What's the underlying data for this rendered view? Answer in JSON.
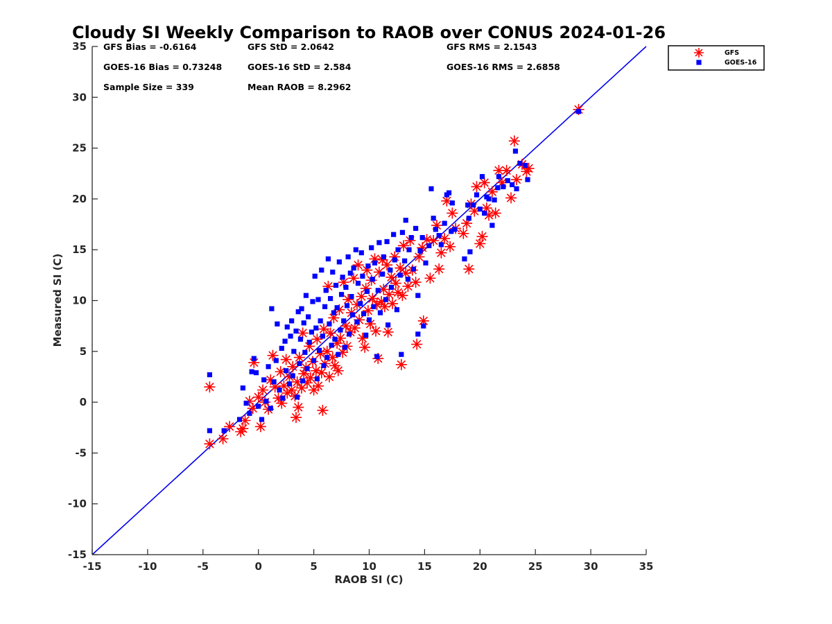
{
  "chart_data": {
    "type": "scatter",
    "title": "Cloudy SI Weekly Comparison to RAOB over CONUS 2024-01-26",
    "xlabel": "RAOB SI (C)",
    "ylabel": "Measured SI (C)",
    "xlim": [
      -15,
      35
    ],
    "ylim": [
      -15,
      35
    ],
    "xticks": [
      "-15",
      "-10",
      "-5",
      "0",
      "5",
      "10",
      "15",
      "20",
      "25",
      "30",
      "35"
    ],
    "yticks": [
      "-15",
      "-10",
      "-5",
      "0",
      "5",
      "10",
      "15",
      "20",
      "25",
      "30",
      "35"
    ],
    "one_to_one_line": true,
    "grid": false,
    "legend_position": "top-right outside",
    "stats": [
      {
        "text": "GFS Bias = -0.6164"
      },
      {
        "text": "GFS StD = 2.0642"
      },
      {
        "text": "GFS RMS = 2.1543"
      },
      {
        "text": "GOES-16 Bias = 0.73248"
      },
      {
        "text": "GOES-16 StD = 2.584"
      },
      {
        "text": "GOES-16 RMS = 2.6858"
      },
      {
        "text": "Sample Size = 339"
      },
      {
        "text": "Mean RAOB = 8.2962"
      }
    ],
    "series": [
      {
        "name": "GFS",
        "marker": "asterisk",
        "color": "#ff0000",
        "points": [
          [
            -4.4,
            1.5
          ],
          [
            -4.4,
            -4.1
          ],
          [
            -3.2,
            -3.6
          ],
          [
            -2.6,
            -2.4
          ],
          [
            -1.6,
            -2.9
          ],
          [
            -1.4,
            -2.6
          ],
          [
            -1.2,
            -1.8
          ],
          [
            -0.8,
            0.1
          ],
          [
            -0.5,
            -0.6
          ],
          [
            -0.4,
            3.9
          ],
          [
            0.0,
            0.5
          ],
          [
            0.2,
            -2.4
          ],
          [
            0.4,
            1.2
          ],
          [
            0.6,
            0.0
          ],
          [
            0.9,
            -0.7
          ],
          [
            1.1,
            2.2
          ],
          [
            1.3,
            4.6
          ],
          [
            1.5,
            1.5
          ],
          [
            1.8,
            0.4
          ],
          [
            2.0,
            3.0
          ],
          [
            2.1,
            -0.1
          ],
          [
            2.3,
            1.6
          ],
          [
            2.5,
            4.2
          ],
          [
            2.6,
            0.9
          ],
          [
            2.8,
            2.5
          ],
          [
            3.0,
            1.2
          ],
          [
            3.1,
            3.5
          ],
          [
            3.3,
            0.6
          ],
          [
            3.4,
            -1.5
          ],
          [
            3.5,
            2.0
          ],
          [
            3.6,
            -0.5
          ],
          [
            3.7,
            4.4
          ],
          [
            3.9,
            1.4
          ],
          [
            4.0,
            6.8
          ],
          [
            4.1,
            2.8
          ],
          [
            4.3,
            3.4
          ],
          [
            4.4,
            1.9
          ],
          [
            4.6,
            5.5
          ],
          [
            4.7,
            2.4
          ],
          [
            4.9,
            4.0
          ],
          [
            5.0,
            1.2
          ],
          [
            5.2,
            3.1
          ],
          [
            5.3,
            6.2
          ],
          [
            5.4,
            1.6
          ],
          [
            5.6,
            4.8
          ],
          [
            5.7,
            2.9
          ],
          [
            5.8,
            -0.8
          ],
          [
            5.9,
            7.2
          ],
          [
            6.0,
            3.8
          ],
          [
            6.2,
            5.0
          ],
          [
            6.3,
            11.4
          ],
          [
            6.4,
            2.5
          ],
          [
            6.5,
            6.8
          ],
          [
            6.7,
            4.4
          ],
          [
            6.8,
            8.3
          ],
          [
            6.9,
            3.6
          ],
          [
            7.1,
            5.8
          ],
          [
            7.2,
            3.1
          ],
          [
            7.3,
            9.1
          ],
          [
            7.4,
            6.3
          ],
          [
            7.6,
            4.9
          ],
          [
            7.7,
            11.8
          ],
          [
            7.9,
            7.5
          ],
          [
            8.0,
            5.5
          ],
          [
            8.1,
            10.1
          ],
          [
            8.3,
            6.9
          ],
          [
            8.4,
            8.8
          ],
          [
            8.6,
            12.2
          ],
          [
            8.7,
            7.3
          ],
          [
            8.9,
            9.6
          ],
          [
            9.0,
            13.5
          ],
          [
            9.1,
            8.1
          ],
          [
            9.3,
            10.4
          ],
          [
            9.4,
            6.3
          ],
          [
            9.6,
            5.4
          ],
          [
            9.7,
            11.2
          ],
          [
            9.8,
            13.0
          ],
          [
            9.9,
            9.0
          ],
          [
            10.1,
            7.7
          ],
          [
            10.2,
            12.0
          ],
          [
            10.3,
            10.2
          ],
          [
            10.5,
            14.1
          ],
          [
            10.6,
            7.0
          ],
          [
            10.7,
            9.6
          ],
          [
            10.8,
            4.3
          ],
          [
            10.9,
            12.8
          ],
          [
            11.1,
            9.9
          ],
          [
            11.2,
            14.0
          ],
          [
            11.3,
            11.1
          ],
          [
            11.4,
            9.4
          ],
          [
            11.6,
            13.5
          ],
          [
            11.7,
            6.9
          ],
          [
            11.8,
            10.6
          ],
          [
            12.0,
            12.3
          ],
          [
            12.1,
            9.7
          ],
          [
            12.3,
            14.3
          ],
          [
            12.4,
            11.7
          ],
          [
            12.6,
            10.8
          ],
          [
            12.8,
            13.2
          ],
          [
            12.9,
            3.7
          ],
          [
            13.0,
            10.5
          ],
          [
            13.1,
            15.4
          ],
          [
            13.3,
            12.7
          ],
          [
            13.5,
            11.4
          ],
          [
            13.7,
            15.9
          ],
          [
            13.9,
            13.0
          ],
          [
            14.2,
            11.8
          ],
          [
            14.3,
            5.7
          ],
          [
            14.5,
            14.3
          ],
          [
            14.8,
            15.2
          ],
          [
            14.9,
            8.0
          ],
          [
            15.2,
            16.0
          ],
          [
            15.5,
            12.2
          ],
          [
            15.8,
            15.9
          ],
          [
            16.1,
            17.4
          ],
          [
            16.3,
            13.1
          ],
          [
            16.5,
            14.7
          ],
          [
            16.8,
            16.1
          ],
          [
            17.0,
            19.8
          ],
          [
            17.3,
            15.3
          ],
          [
            17.5,
            18.6
          ],
          [
            17.8,
            17.1
          ],
          [
            18.5,
            16.6
          ],
          [
            18.8,
            17.6
          ],
          [
            19.0,
            13.1
          ],
          [
            19.2,
            19.5
          ],
          [
            19.5,
            18.8
          ],
          [
            19.7,
            21.2
          ],
          [
            20.0,
            15.6
          ],
          [
            20.2,
            16.3
          ],
          [
            20.4,
            21.6
          ],
          [
            20.6,
            19.1
          ],
          [
            20.8,
            18.4
          ],
          [
            21.1,
            20.7
          ],
          [
            21.4,
            18.6
          ],
          [
            21.7,
            22.8
          ],
          [
            22.0,
            21.6
          ],
          [
            22.4,
            22.8
          ],
          [
            22.8,
            20.1
          ],
          [
            23.1,
            25.7
          ],
          [
            23.3,
            21.9
          ],
          [
            23.8,
            23.4
          ],
          [
            24.2,
            22.7
          ],
          [
            24.4,
            23.0
          ],
          [
            28.9,
            28.8
          ]
        ]
      },
      {
        "name": "GOES-16",
        "marker": "square",
        "color": "#0000ff",
        "points": [
          [
            -4.4,
            2.7
          ],
          [
            -4.4,
            -2.8
          ],
          [
            -3.1,
            -2.8
          ],
          [
            -1.7,
            -1.7
          ],
          [
            -1.4,
            1.4
          ],
          [
            -1.1,
            -0.1
          ],
          [
            -0.8,
            -1.1
          ],
          [
            -0.6,
            3.0
          ],
          [
            -0.4,
            4.3
          ],
          [
            -0.2,
            2.9
          ],
          [
            0.0,
            -0.4
          ],
          [
            0.3,
            -1.7
          ],
          [
            0.5,
            2.2
          ],
          [
            0.7,
            0.1
          ],
          [
            0.9,
            3.5
          ],
          [
            1.1,
            -0.6
          ],
          [
            1.2,
            9.2
          ],
          [
            1.4,
            2.0
          ],
          [
            1.6,
            4.1
          ],
          [
            1.7,
            7.7
          ],
          [
            1.9,
            1.2
          ],
          [
            2.1,
            5.3
          ],
          [
            2.2,
            0.4
          ],
          [
            2.4,
            6.0
          ],
          [
            2.5,
            3.1
          ],
          [
            2.6,
            7.4
          ],
          [
            2.8,
            1.8
          ],
          [
            2.9,
            6.5
          ],
          [
            3.0,
            8.0
          ],
          [
            3.1,
            2.6
          ],
          [
            3.2,
            5.0
          ],
          [
            3.4,
            7.0
          ],
          [
            3.5,
            0.5
          ],
          [
            3.6,
            8.9
          ],
          [
            3.7,
            3.8
          ],
          [
            3.8,
            6.2
          ],
          [
            3.9,
            9.2
          ],
          [
            4.0,
            2.1
          ],
          [
            4.1,
            7.8
          ],
          [
            4.2,
            4.9
          ],
          [
            4.3,
            10.5
          ],
          [
            4.4,
            3.3
          ],
          [
            4.5,
            8.4
          ],
          [
            4.6,
            5.9
          ],
          [
            4.8,
            6.9
          ],
          [
            4.9,
            9.9
          ],
          [
            5.0,
            4.1
          ],
          [
            5.1,
            12.4
          ],
          [
            5.2,
            7.3
          ],
          [
            5.3,
            2.3
          ],
          [
            5.4,
            10.1
          ],
          [
            5.5,
            5.1
          ],
          [
            5.6,
            8.0
          ],
          [
            5.7,
            13.0
          ],
          [
            5.8,
            6.5
          ],
          [
            5.9,
            3.6
          ],
          [
            6.0,
            9.4
          ],
          [
            6.1,
            11.0
          ],
          [
            6.2,
            4.4
          ],
          [
            6.3,
            14.1
          ],
          [
            6.4,
            7.7
          ],
          [
            6.5,
            10.2
          ],
          [
            6.6,
            5.6
          ],
          [
            6.7,
            12.8
          ],
          [
            6.8,
            8.8
          ],
          [
            6.9,
            6.2
          ],
          [
            7.0,
            11.5
          ],
          [
            7.1,
            9.3
          ],
          [
            7.2,
            4.7
          ],
          [
            7.3,
            13.8
          ],
          [
            7.4,
            7.1
          ],
          [
            7.5,
            10.6
          ],
          [
            7.6,
            12.3
          ],
          [
            7.7,
            8.0
          ],
          [
            7.8,
            5.4
          ],
          [
            7.9,
            11.3
          ],
          [
            8.0,
            9.5
          ],
          [
            8.1,
            14.3
          ],
          [
            8.2,
            6.7
          ],
          [
            8.3,
            12.7
          ],
          [
            8.4,
            10.4
          ],
          [
            8.5,
            8.6
          ],
          [
            8.6,
            13.2
          ],
          [
            8.8,
            15.0
          ],
          [
            8.9,
            7.9
          ],
          [
            9.0,
            11.7
          ],
          [
            9.2,
            9.7
          ],
          [
            9.3,
            14.7
          ],
          [
            9.4,
            12.4
          ],
          [
            9.5,
            8.7
          ],
          [
            9.7,
            6.6
          ],
          [
            9.8,
            10.9
          ],
          [
            9.9,
            13.4
          ],
          [
            10.0,
            8.1
          ],
          [
            10.2,
            15.2
          ],
          [
            10.3,
            12.1
          ],
          [
            10.4,
            9.4
          ],
          [
            10.5,
            13.7
          ],
          [
            10.7,
            4.5
          ],
          [
            10.8,
            11.0
          ],
          [
            10.9,
            15.7
          ],
          [
            11.0,
            8.8
          ],
          [
            11.2,
            12.6
          ],
          [
            11.3,
            14.3
          ],
          [
            11.5,
            10.1
          ],
          [
            11.6,
            15.8
          ],
          [
            11.7,
            7.6
          ],
          [
            11.9,
            13.0
          ],
          [
            12.0,
            11.3
          ],
          [
            12.2,
            16.5
          ],
          [
            12.3,
            14.0
          ],
          [
            12.5,
            9.1
          ],
          [
            12.6,
            15.0
          ],
          [
            12.8,
            12.5
          ],
          [
            12.9,
            4.7
          ],
          [
            13.0,
            16.7
          ],
          [
            13.2,
            13.9
          ],
          [
            13.3,
            17.9
          ],
          [
            13.5,
            12.1
          ],
          [
            13.6,
            15.0
          ],
          [
            13.8,
            16.2
          ],
          [
            14.0,
            13.1
          ],
          [
            14.2,
            17.1
          ],
          [
            14.4,
            6.7
          ],
          [
            14.4,
            10.5
          ],
          [
            14.6,
            14.9
          ],
          [
            14.8,
            16.2
          ],
          [
            14.9,
            7.5
          ],
          [
            15.1,
            13.7
          ],
          [
            15.4,
            15.4
          ],
          [
            15.6,
            21.0
          ],
          [
            15.8,
            18.1
          ],
          [
            16.0,
            17.0
          ],
          [
            16.3,
            16.4
          ],
          [
            16.5,
            15.5
          ],
          [
            16.8,
            17.6
          ],
          [
            17.0,
            20.4
          ],
          [
            17.2,
            20.6
          ],
          [
            17.4,
            16.8
          ],
          [
            17.5,
            19.6
          ],
          [
            17.7,
            17.0
          ],
          [
            18.6,
            14.1
          ],
          [
            18.9,
            19.4
          ],
          [
            19.0,
            18.1
          ],
          [
            19.1,
            14.8
          ],
          [
            19.4,
            19.4
          ],
          [
            19.7,
            20.4
          ],
          [
            20.0,
            19.0
          ],
          [
            20.2,
            22.2
          ],
          [
            20.4,
            18.6
          ],
          [
            20.6,
            20.2
          ],
          [
            20.8,
            20.0
          ],
          [
            21.1,
            17.4
          ],
          [
            21.3,
            19.9
          ],
          [
            21.6,
            21.1
          ],
          [
            21.7,
            22.2
          ],
          [
            22.1,
            21.2
          ],
          [
            22.5,
            21.8
          ],
          [
            22.9,
            21.4
          ],
          [
            23.3,
            21.0
          ],
          [
            23.2,
            24.7
          ],
          [
            23.6,
            23.5
          ],
          [
            24.1,
            23.3
          ],
          [
            24.3,
            21.9
          ],
          [
            28.9,
            28.6
          ]
        ]
      }
    ]
  }
}
